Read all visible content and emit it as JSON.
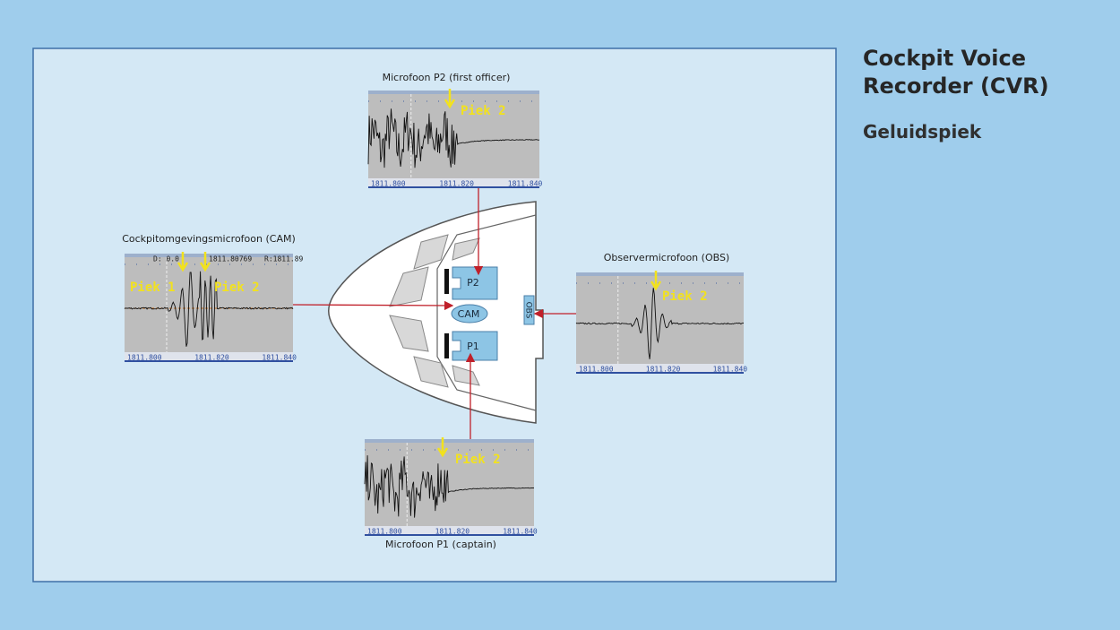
{
  "title": "Cockpit Voice Recorder (CVR)",
  "subtitle": "Geluidspiek",
  "panels": [
    {
      "label": "Microfoon P2 (first officer)",
      "peaks": [
        "Piek 2"
      ],
      "axis": [
        "1811.800",
        "1811.820",
        "1811.840"
      ]
    },
    {
      "label": "Cockpitomgevingsmicrofoon (CAM)",
      "header": [
        "D: 0.0",
        "1811.80769",
        "R:1811.89"
      ],
      "peaks": [
        "Piek 1",
        "Piek 2"
      ],
      "axis": [
        "1811.800",
        "1811.820",
        "1811.840"
      ]
    },
    {
      "label": "Observermicrofoon (OBS)",
      "peaks": [
        "Piek 2"
      ],
      "axis": [
        "1811.800",
        "1811.820",
        "1811.840"
      ]
    },
    {
      "label": "Microfoon P1 (captain)",
      "peaks": [
        "Piek 2"
      ],
      "axis": [
        "1811.800",
        "1811.820",
        "1811.840"
      ]
    }
  ],
  "cockpit": {
    "labels": [
      "P2",
      "CAM",
      "P1",
      "OBS"
    ]
  }
}
